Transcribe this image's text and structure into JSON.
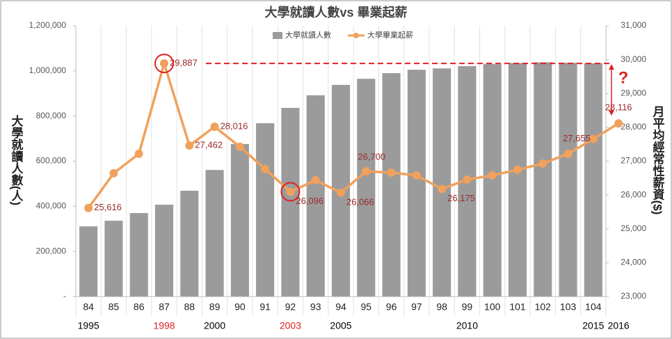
{
  "chart_data": {
    "type": "bar_line",
    "title": "大學就讀人數vs 畢業起薪",
    "y_label": "大學就讀人數(人)",
    "y2_label": "月平均經常性薪資($)",
    "categories": [
      "84",
      "85",
      "86",
      "87",
      "88",
      "89",
      "90",
      "91",
      "92",
      "93",
      "94",
      "95",
      "96",
      "97",
      "98",
      "99",
      "100",
      "101",
      "102",
      "103",
      "104",
      null
    ],
    "series": [
      {
        "name": "大學就讀人數",
        "type": "bar",
        "color": "#9b9b9b",
        "values": [
          311000,
          336000,
          370000,
          407000,
          469000,
          561000,
          676000,
          768000,
          836000,
          892000,
          938000,
          965000,
          990000,
          1005000,
          1011000,
          1021000,
          1030000,
          1035000,
          1038000,
          1036000,
          1034000,
          null
        ]
      },
      {
        "name": "大學畢業起薪",
        "type": "line",
        "axis": "y2",
        "color": "#f0a15c",
        "values": [
          25616,
          26642,
          27218,
          29887,
          27462,
          28016,
          27424,
          26765,
          26096,
          26436,
          26066,
          26700,
          26660,
          26580,
          26175,
          26457,
          26580,
          26745,
          26930,
          27218,
          27655,
          28116
        ],
        "value_labels": [
          "25,616",
          null,
          null,
          "29,887",
          "27,462",
          "28,016",
          null,
          null,
          "26,096",
          null,
          "26,066",
          "26,700",
          null,
          null,
          "26,175",
          null,
          null,
          null,
          null,
          null,
          "27,655",
          "28,116"
        ]
      }
    ],
    "ylim": [
      0,
      1200000
    ],
    "yticks": [
      {
        "value": 0,
        "label": "-"
      },
      {
        "value": 200000,
        "label": "200,000"
      },
      {
        "value": 400000,
        "label": "400,000"
      },
      {
        "value": 600000,
        "label": "600,000"
      },
      {
        "value": 800000,
        "label": "800,000"
      },
      {
        "value": 1000000,
        "label": "1,000,000"
      },
      {
        "value": 1200000,
        "label": "1,200,000"
      }
    ],
    "y2lim": [
      23000,
      31000
    ],
    "y2ticks": [
      {
        "value": 23000,
        "label": "23,000"
      },
      {
        "value": 24000,
        "label": "24,000"
      },
      {
        "value": 25000,
        "label": "25,000"
      },
      {
        "value": 26000,
        "label": "26,000"
      },
      {
        "value": 27000,
        "label": "27,000"
      },
      {
        "value": 28000,
        "label": "28,000"
      },
      {
        "value": 29000,
        "label": "29,000"
      },
      {
        "value": 30000,
        "label": "30,000"
      },
      {
        "value": 31000,
        "label": "31,000"
      }
    ],
    "year_labels": [
      {
        "text": "1995",
        "category": 0,
        "color": "#000000"
      },
      {
        "text": "1998",
        "category": 3,
        "color": "#e02020"
      },
      {
        "text": "2000",
        "category": 5,
        "color": "#000000"
      },
      {
        "text": "2003",
        "category": 8,
        "color": "#e02020"
      },
      {
        "text": "2005",
        "category": 10,
        "color": "#000000"
      },
      {
        "text": "2010",
        "category": 15,
        "color": "#000000"
      },
      {
        "text": "2015",
        "category": 20,
        "color": "#000000"
      },
      {
        "text": "2016",
        "category": 21,
        "color": "#000000"
      }
    ],
    "highlight": [
      3,
      8
    ],
    "question_mark": "?",
    "legend": "top"
  }
}
